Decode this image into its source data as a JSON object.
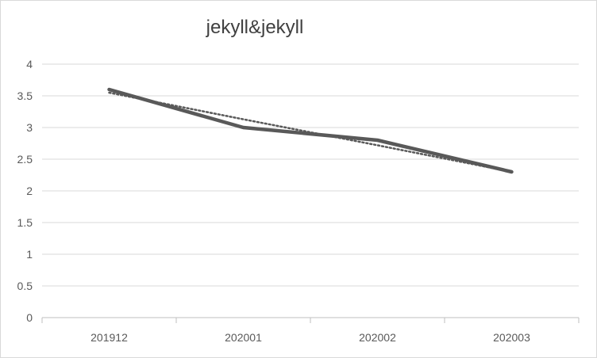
{
  "chart_data": {
    "type": "line",
    "title": "jekyll&jekyll",
    "xlabel": "",
    "ylabel": "",
    "categories": [
      "201912",
      "202001",
      "202002",
      "202003"
    ],
    "series": [
      {
        "values": [
          3.6,
          3.0,
          2.8,
          2.3
        ],
        "color": "#595959",
        "style": "solid"
      }
    ],
    "trendline": {
      "type": "linear",
      "style": "dotted",
      "color": "#595959",
      "values": [
        3.55,
        3.13,
        2.72,
        2.3
      ]
    },
    "ylim": [
      0,
      4
    ],
    "yticks": [
      "0",
      "0.5",
      "1",
      "1.5",
      "2",
      "2.5",
      "3",
      "3.5",
      "4"
    ],
    "grid": true,
    "legend": "none"
  }
}
